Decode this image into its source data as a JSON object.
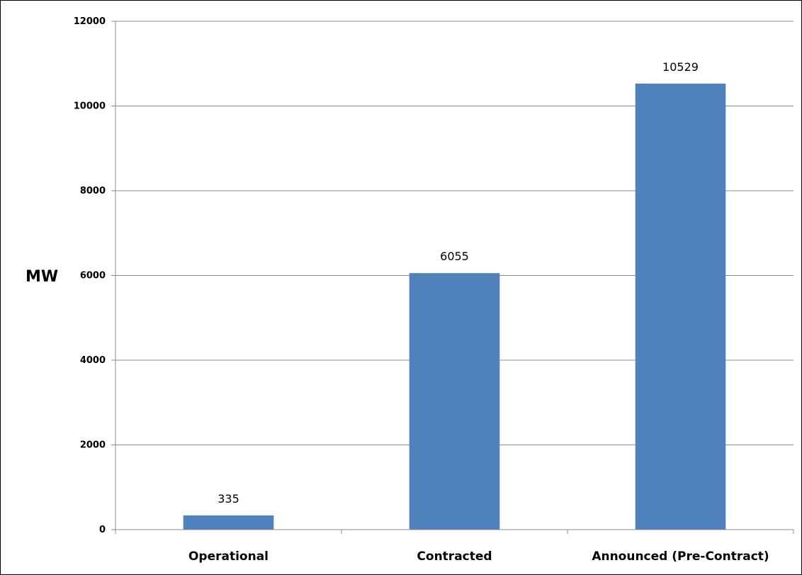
{
  "chart_data": {
    "type": "bar",
    "categories": [
      "Operational",
      "Contracted",
      "Announced (Pre-Contract)"
    ],
    "values": [
      335,
      6055,
      10529
    ],
    "data_labels": [
      "335",
      "6055",
      "10529"
    ],
    "title": "",
    "xlabel": "",
    "ylabel": "MW",
    "ylim": [
      0,
      12000
    ],
    "yticks": [
      0,
      2000,
      4000,
      6000,
      8000,
      10000,
      12000
    ],
    "ytick_labels": [
      "0",
      "2000",
      "4000",
      "6000",
      "8000",
      "10000",
      "12000"
    ],
    "grid": true,
    "legend": "none",
    "bar_color": "#4F81BD",
    "grid_color": "#8C8C8C"
  }
}
